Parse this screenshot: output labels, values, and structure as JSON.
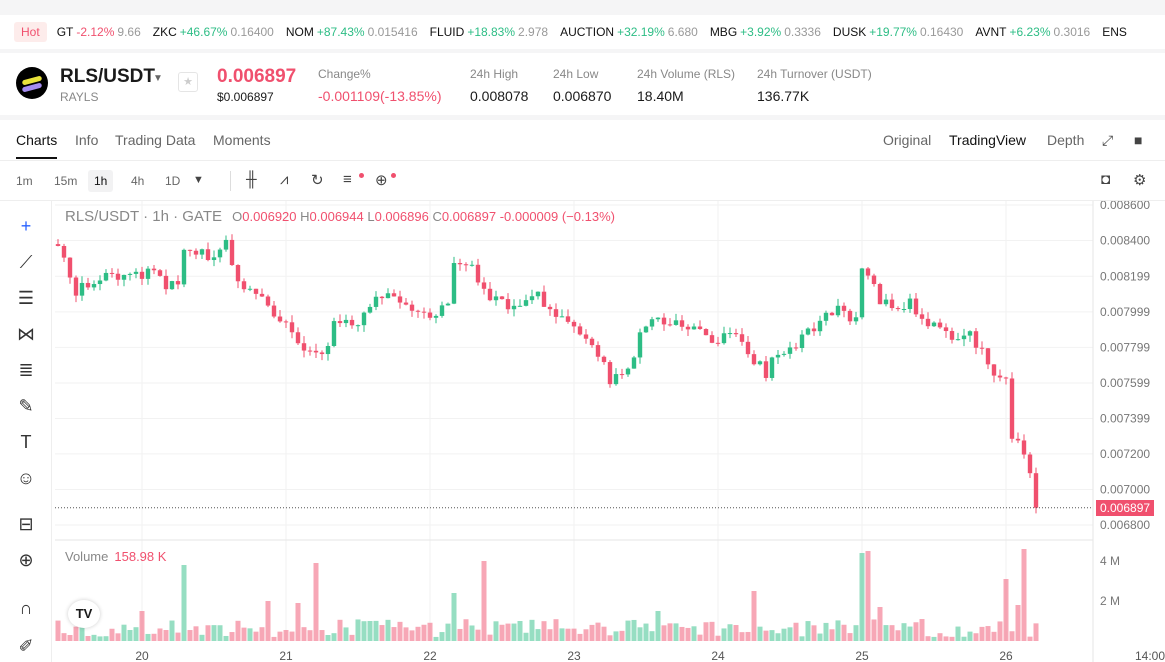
{
  "ticker": {
    "hot": "Hot",
    "items": [
      {
        "sym": "GT",
        "chg": "-2.12%",
        "px": "9.66",
        "up": false
      },
      {
        "sym": "ZKC",
        "chg": "+46.67%",
        "px": "0.16400",
        "up": true
      },
      {
        "sym": "NOM",
        "chg": "+87.43%",
        "px": "0.015416",
        "up": true
      },
      {
        "sym": "FLUID",
        "chg": "+18.83%",
        "px": "2.978",
        "up": true
      },
      {
        "sym": "AUCTION",
        "chg": "+32.19%",
        "px": "6.680",
        "up": true
      },
      {
        "sym": "MBG",
        "chg": "+3.92%",
        "px": "0.3336",
        "up": true
      },
      {
        "sym": "DUSK",
        "chg": "+19.77%",
        "px": "0.16430",
        "up": true
      },
      {
        "sym": "AVNT",
        "chg": "+6.23%",
        "px": "0.3016",
        "up": true
      },
      {
        "sym": "ENS",
        "chg": "",
        "px": "",
        "up": true
      }
    ]
  },
  "header": {
    "pair": "RLS/USDT",
    "base": "RAYLS",
    "price": "0.006897",
    "usd_price": "$0.006897",
    "stats": [
      {
        "label": "Change%",
        "value": "-0.001109(-13.85%)"
      },
      {
        "label": "24h High",
        "value": "0.008078"
      },
      {
        "label": "24h Low",
        "value": "0.006870"
      },
      {
        "label": "24h Volume (RLS)",
        "value": "18.40M"
      },
      {
        "label": "24h Turnover (USDT)",
        "value": "136.77K"
      }
    ]
  },
  "tabs": {
    "left": [
      "Charts",
      "Info",
      "Trading Data",
      "Moments"
    ],
    "right": [
      "Original",
      "TradingView",
      "Depth"
    ]
  },
  "timeframes": [
    "1m",
    "15m",
    "1h",
    "4h",
    "1D"
  ],
  "legend": {
    "title": "RLS/USDT · 1h · GATE",
    "o": "0.006920",
    "h": "0.006944",
    "l": "0.006896",
    "c": "0.006897",
    "chg": "-0.000009 (−0.13%)",
    "volume_label": "Volume",
    "volume_value": "158.98 K",
    "last_price": "0.006897"
  },
  "colors": {
    "up": "#2dbd85",
    "down": "#f0506e"
  },
  "chart_data": {
    "type": "candlestick",
    "interval": "1h",
    "ylim": [
      0.0068,
      0.0086
    ],
    "price_ticks": [
      "0.008600",
      "0.008400",
      "0.008199",
      "0.007999",
      "0.007799",
      "0.007599",
      "0.007399",
      "0.007200",
      "0.007000",
      "0.006800"
    ],
    "x_ticks": [
      "20",
      "21",
      "22",
      "23",
      "24",
      "25",
      "26",
      "14:00"
    ],
    "volume_ticks": [
      "4 M",
      "2 M"
    ],
    "close_keypoints": [
      [
        0,
        0.00835
      ],
      [
        3,
        0.00812
      ],
      [
        7,
        0.0082
      ],
      [
        12,
        0.00818
      ],
      [
        15,
        0.00822
      ],
      [
        20,
        0.00812
      ],
      [
        21,
        0.00835
      ],
      [
        25,
        0.00832
      ],
      [
        28,
        0.00837
      ],
      [
        30,
        0.00815
      ],
      [
        34,
        0.00807
      ],
      [
        39,
        0.0079
      ],
      [
        41,
        0.00781
      ],
      [
        44,
        0.00773
      ],
      [
        46,
        0.00792
      ],
      [
        50,
        0.00794
      ],
      [
        53,
        0.00809
      ],
      [
        56,
        0.0081
      ],
      [
        59,
        0.00804
      ],
      [
        62,
        0.00795
      ],
      [
        65,
        0.00807
      ],
      [
        66,
        0.00829
      ],
      [
        69,
        0.00823
      ],
      [
        72,
        0.00809
      ],
      [
        75,
        0.00804
      ],
      [
        80,
        0.00808
      ],
      [
        83,
        0.00798
      ],
      [
        87,
        0.0079
      ],
      [
        90,
        0.00776
      ],
      [
        92,
        0.00762
      ],
      [
        95,
        0.00767
      ],
      [
        97,
        0.00787
      ],
      [
        100,
        0.00798
      ],
      [
        104,
        0.0079
      ],
      [
        107,
        0.0079
      ],
      [
        109,
        0.00781
      ],
      [
        111,
        0.0079
      ],
      [
        114,
        0.00784
      ],
      [
        115,
        0.00776
      ],
      [
        118,
        0.00766
      ],
      [
        120,
        0.00778
      ],
      [
        124,
        0.00784
      ],
      [
        127,
        0.00794
      ],
      [
        130,
        0.00804
      ],
      [
        133,
        0.00795
      ],
      [
        134,
        0.00826
      ],
      [
        137,
        0.00806
      ],
      [
        140,
        0.00798
      ],
      [
        142,
        0.00804
      ],
      [
        145,
        0.00792
      ],
      [
        149,
        0.00787
      ],
      [
        152,
        0.00787
      ],
      [
        154,
        0.00778
      ],
      [
        156,
        0.00762
      ],
      [
        158,
        0.00762
      ],
      [
        159,
        0.00731
      ],
      [
        160,
        0.00727
      ],
      [
        162,
        0.00711
      ],
      [
        163,
        0.006897
      ]
    ],
    "volume_spikes_M": [
      [
        14,
        1.5
      ],
      [
        21,
        3.8
      ],
      [
        35,
        2.0
      ],
      [
        40,
        1.9
      ],
      [
        43,
        3.9
      ],
      [
        66,
        2.4
      ],
      [
        71,
        4.0
      ],
      [
        100,
        1.5
      ],
      [
        116,
        2.5
      ],
      [
        134,
        4.4
      ],
      [
        135,
        4.5
      ],
      [
        137,
        1.7
      ],
      [
        158,
        3.1
      ],
      [
        160,
        1.8
      ],
      [
        161,
        4.6
      ]
    ]
  }
}
